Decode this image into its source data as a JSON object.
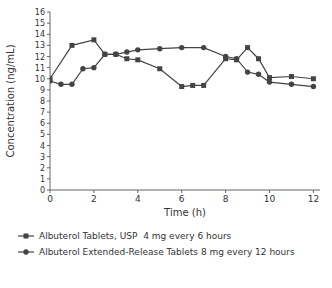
{
  "chart_data": {
    "type": "line",
    "xlabel": "Time (h)",
    "ylabel": "Concentration (ng/mL)",
    "xlim": [
      0,
      12.3
    ],
    "ylim": [
      0,
      16
    ],
    "xticks": [
      0,
      2,
      4,
      6,
      8,
      10,
      12
    ],
    "yticks": [
      0,
      1,
      2,
      3,
      4,
      5,
      6,
      7,
      8,
      9,
      10,
      11,
      12,
      13,
      14,
      15,
      16
    ],
    "grid": false,
    "legend": "bottom",
    "series": [
      {
        "name": "Albuterol Tablets, USP  4 mg every 6 hours",
        "color": "#444444",
        "marker": "square",
        "x": [
          0,
          1,
          2,
          2.5,
          3,
          3.5,
          4,
          5,
          6,
          6.5,
          7,
          8,
          8.5,
          9,
          9.5,
          10,
          11,
          12
        ],
        "values": [
          10.0,
          13.0,
          13.5,
          12.2,
          12.2,
          11.8,
          11.7,
          10.9,
          9.3,
          9.4,
          9.4,
          11.8,
          11.7,
          12.8,
          11.8,
          10.1,
          10.2,
          10.0
        ]
      },
      {
        "name": "Albuterol Extended-Release Tablets 8 mg every 12 hours",
        "color": "#444444",
        "marker": "circle",
        "x": [
          0,
          0.5,
          1,
          1.5,
          2,
          2.5,
          3,
          3.5,
          4,
          5,
          6,
          7,
          8,
          8.5,
          9,
          9.5,
          10,
          11,
          12
        ],
        "values": [
          9.8,
          9.5,
          9.5,
          10.9,
          11.0,
          12.2,
          12.2,
          12.4,
          12.6,
          12.7,
          12.8,
          12.8,
          12.0,
          11.8,
          10.6,
          10.4,
          9.7,
          9.5,
          9.3
        ]
      }
    ]
  }
}
